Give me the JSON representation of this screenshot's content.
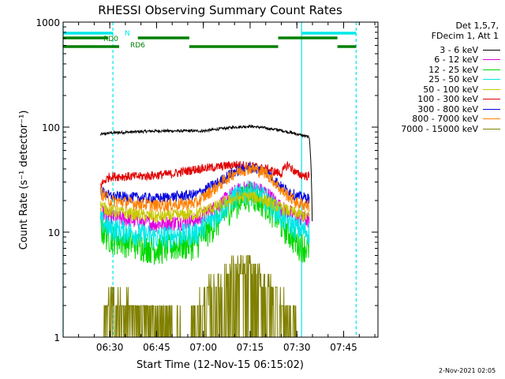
{
  "chart_data": {
    "type": "line",
    "title": "RHESSI Observing Summary Count Rates",
    "xlabel": "Start Time (12-Nov-15 06:15:02)",
    "ylabel": "Count Rate (s⁻¹ detector⁻¹)",
    "yscale": "log",
    "ylim": [
      1,
      1000
    ],
    "xlim": [
      "06:15:02",
      "07:56:00"
    ],
    "x_ticks": [
      "06:30",
      "06:45",
      "07:00",
      "07:15",
      "07:30",
      "07:45"
    ],
    "y_ticks": [
      "1",
      "10",
      "100",
      "1000"
    ],
    "legend_title": [
      "Det 1,5,7,",
      "FDecim 1, Att 1"
    ],
    "legend_position": "right",
    "series": [
      {
        "name": "3 - 6 keV",
        "color": "#000000",
        "x": [
          "06:27",
          "06:30",
          "06:45",
          "07:00",
          "07:05",
          "07:10",
          "07:15",
          "07:20",
          "07:25",
          "07:30",
          "07:34",
          "07:35"
        ],
        "y": [
          85,
          88,
          92,
          92,
          96,
          100,
          102,
          98,
          93,
          86,
          80,
          7
        ]
      },
      {
        "name": "6 - 12 keV",
        "color": "#e000e0",
        "x": [
          "06:27",
          "06:30",
          "06:45",
          "06:58",
          "07:05",
          "07:10",
          "07:15",
          "07:20",
          "07:25",
          "07:30",
          "07:34"
        ],
        "y": [
          16,
          14,
          12,
          13,
          18,
          24,
          27,
          24,
          17,
          14,
          13
        ]
      },
      {
        "name": "12 - 25 keV",
        "color": "#00d800",
        "x": [
          "06:27",
          "06:30",
          "06:45",
          "06:58",
          "07:05",
          "07:10",
          "07:15",
          "07:20",
          "07:25",
          "07:30",
          "07:34"
        ],
        "y": [
          11,
          9,
          7,
          8,
          13,
          19,
          23,
          19,
          12,
          8,
          7
        ]
      },
      {
        "name": "25 - 50 keV",
        "color": "#00e8e8",
        "x": [
          "06:27",
          "06:30",
          "06:45",
          "06:58",
          "07:05",
          "07:10",
          "07:15",
          "07:20",
          "07:25",
          "07:30",
          "07:34"
        ],
        "y": [
          13,
          11,
          9,
          10,
          15,
          22,
          25,
          21,
          14,
          11,
          10
        ]
      },
      {
        "name": "50 - 100 keV",
        "color": "#c8c800",
        "x": [
          "06:27",
          "06:30",
          "06:45",
          "06:58",
          "07:05",
          "07:10",
          "07:15",
          "07:20",
          "07:25",
          "07:30",
          "07:34"
        ],
        "y": [
          18,
          16,
          14,
          15,
          18,
          21,
          22,
          20,
          17,
          15,
          14
        ]
      },
      {
        "name": "100 - 300 keV",
        "color": "#e00000",
        "x": [
          "06:27",
          "06:30",
          "06:40",
          "06:50",
          "06:58",
          "07:05",
          "07:10",
          "07:15",
          "07:20",
          "07:25",
          "07:27",
          "07:30",
          "07:34"
        ],
        "y": [
          28,
          34,
          34,
          36,
          40,
          42,
          44,
          43,
          40,
          36,
          44,
          36,
          34
        ]
      },
      {
        "name": "300 - 800 keV",
        "color": "#0000e0",
        "x": [
          "06:27",
          "06:30",
          "06:45",
          "06:58",
          "07:05",
          "07:10",
          "07:15",
          "07:20",
          "07:25",
          "07:30",
          "07:34"
        ],
        "y": [
          25,
          22,
          21,
          23,
          30,
          38,
          42,
          38,
          27,
          22,
          21
        ]
      },
      {
        "name": "800 - 7000 keV",
        "color": "#ff8000",
        "x": [
          "06:27",
          "06:30",
          "06:45",
          "06:58",
          "07:05",
          "07:10",
          "07:15",
          "07:20",
          "07:25",
          "07:30",
          "07:34"
        ],
        "y": [
          24,
          20,
          18,
          19,
          28,
          37,
          41,
          37,
          25,
          19,
          18
        ]
      },
      {
        "name": "7000 - 15000 keV",
        "color": "#808000",
        "x": [
          "06:27",
          "06:30",
          "06:55",
          "07:00",
          "07:05",
          "07:10",
          "07:15",
          "07:20",
          "07:25",
          "07:30"
        ],
        "y": [
          1,
          2,
          1,
          2,
          3,
          4,
          4,
          3,
          2,
          1
        ]
      }
    ],
    "vertical_lines": [
      {
        "time": "06:15:02",
        "color": "#00e8e8",
        "style": "solid"
      },
      {
        "time": "06:31:00",
        "color": "#00e8e8",
        "style": "dashed"
      },
      {
        "time": "07:31:30",
        "color": "#00e8e8",
        "style": "solid"
      },
      {
        "time": "07:49:00",
        "color": "#00e8e8",
        "style": "dashed"
      }
    ],
    "flag_bars": [
      {
        "label": "N",
        "color": "#00e8e8",
        "row": 1,
        "intervals": [
          [
            "06:15:02",
            "06:31:00"
          ],
          [
            "07:31:30",
            "07:49:00"
          ]
        ]
      },
      {
        "label": "RD0",
        "color": "#008000",
        "row": 2,
        "intervals": [
          [
            "06:15:02",
            "06:29:30"
          ],
          [
            "06:39:00",
            "06:55:30"
          ],
          [
            "07:24:00",
            "07:43:00"
          ]
        ]
      },
      {
        "label": "RD6",
        "color": "#008000",
        "row": 3,
        "intervals": [
          [
            "06:15:02",
            "06:33:00"
          ],
          [
            "06:55:30",
            "07:24:00"
          ],
          [
            "07:43:00",
            "07:49:00"
          ]
        ]
      }
    ]
  },
  "footer": {
    "date": "2-Nov-2021 02:05"
  }
}
